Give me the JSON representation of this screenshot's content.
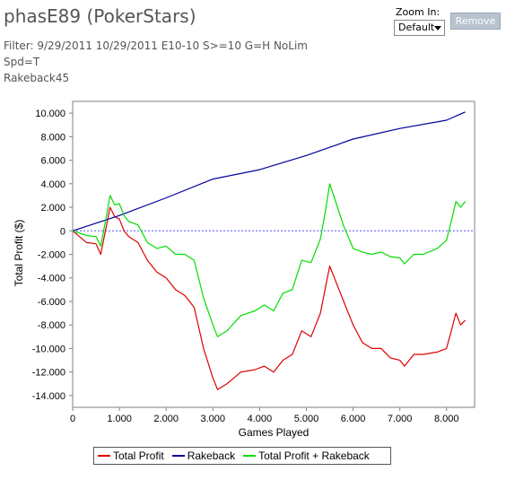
{
  "header": {
    "title": "phasE89 (PokerStars)",
    "filter_line1": "Filter: 9/29/2011 10/29/2011 E10-10 S>=10 G=H NoLim Spd=T",
    "filter_line2": "Rakeback45"
  },
  "controls": {
    "zoom_label": "Zoom In:",
    "zoom_value": "Default",
    "remove_label": "Remove"
  },
  "colors": {
    "total_profit": "#dd0000",
    "rakeback": "#000099",
    "total_profit_plus_rakeback": "#00dd00",
    "zero_line": "#5555ff",
    "axis": "#808080"
  },
  "chart_data": {
    "type": "line",
    "xlabel": "Games Played",
    "ylabel": "Total Profit ($)",
    "xlim": [
      0,
      8600
    ],
    "ylim": [
      -15000,
      11000
    ],
    "x_ticks": [
      0,
      1000,
      2000,
      3000,
      4000,
      5000,
      6000,
      7000,
      8000
    ],
    "x_tick_labels": [
      "0",
      "1.000",
      "2.000",
      "3.000",
      "4.000",
      "5.000",
      "6.000",
      "7.000",
      "8.000"
    ],
    "y_ticks": [
      10000,
      8000,
      6000,
      4000,
      2000,
      0,
      -2000,
      -4000,
      -6000,
      -8000,
      -10000,
      -12000,
      -14000
    ],
    "y_tick_labels": [
      "10.000",
      "8.000",
      "6.000",
      "4.000",
      "2.000",
      "0",
      "-2.000",
      "-4.000",
      "-6.000",
      "-8.000",
      "-10.000",
      "-12.000",
      "-14.000"
    ],
    "grid": false,
    "legend_position": "bottom",
    "series": [
      {
        "name": "Total Profit",
        "color_key": "total_profit",
        "x": [
          0,
          300,
          500,
          600,
          700,
          800,
          900,
          1000,
          1100,
          1200,
          1400,
          1600,
          1800,
          2000,
          2200,
          2400,
          2600,
          2800,
          3000,
          3100,
          3300,
          3600,
          3900,
          4100,
          4300,
          4500,
          4700,
          4900,
          5100,
          5300,
          5400,
          5500,
          5600,
          5800,
          6000,
          6200,
          6400,
          6600,
          6800,
          7000,
          7100,
          7300,
          7500,
          7800,
          8000,
          8100,
          8200,
          8300,
          8400
        ],
        "y": [
          0,
          -1000,
          -1100,
          -2000,
          0,
          2000,
          1200,
          1000,
          0,
          -500,
          -1000,
          -2500,
          -3500,
          -4000,
          -5000,
          -5500,
          -6500,
          -10000,
          -12500,
          -13500,
          -13000,
          -12000,
          -11800,
          -11500,
          -12000,
          -11000,
          -10500,
          -8500,
          -9000,
          -7000,
          -5000,
          -3000,
          -4000,
          -6000,
          -8000,
          -9500,
          -10000,
          -10000,
          -10800,
          -11000,
          -11500,
          -10500,
          -10500,
          -10300,
          -10000,
          -8500,
          -7000,
          -8000,
          -7600
        ]
      },
      {
        "name": "Rakeback",
        "color_key": "rakeback",
        "x": [
          0,
          1000,
          2000,
          3000,
          4000,
          5000,
          6000,
          7000,
          8000,
          8400
        ],
        "y": [
          0,
          1300,
          2800,
          4400,
          5200,
          6400,
          7800,
          8700,
          9400,
          10100
        ]
      },
      {
        "name": "Total Profit + Rakeback",
        "color_key": "total_profit_plus_rakeback",
        "x": [
          0,
          300,
          500,
          600,
          700,
          800,
          900,
          1000,
          1100,
          1200,
          1400,
          1600,
          1800,
          2000,
          2200,
          2400,
          2600,
          2800,
          3000,
          3100,
          3300,
          3600,
          3900,
          4100,
          4300,
          4500,
          4700,
          4900,
          5100,
          5300,
          5400,
          5500,
          5600,
          5800,
          6000,
          6200,
          6400,
          6600,
          6800,
          7000,
          7100,
          7300,
          7500,
          7800,
          8000,
          8100,
          8200,
          8300,
          8400
        ],
        "y": [
          0,
          -400,
          -500,
          -1300,
          800,
          3000,
          2200,
          2300,
          1300,
          800,
          500,
          -1000,
          -1500,
          -1300,
          -2000,
          -2000,
          -2500,
          -5700,
          -8000,
          -9000,
          -8500,
          -7200,
          -6800,
          -6300,
          -6800,
          -5300,
          -5000,
          -2500,
          -2700,
          -700,
          1500,
          4000,
          2800,
          400,
          -1500,
          -1800,
          -2000,
          -1800,
          -2200,
          -2300,
          -2800,
          -2000,
          -2000,
          -1500,
          -800,
          800,
          2500,
          2000,
          2500
        ]
      }
    ]
  }
}
